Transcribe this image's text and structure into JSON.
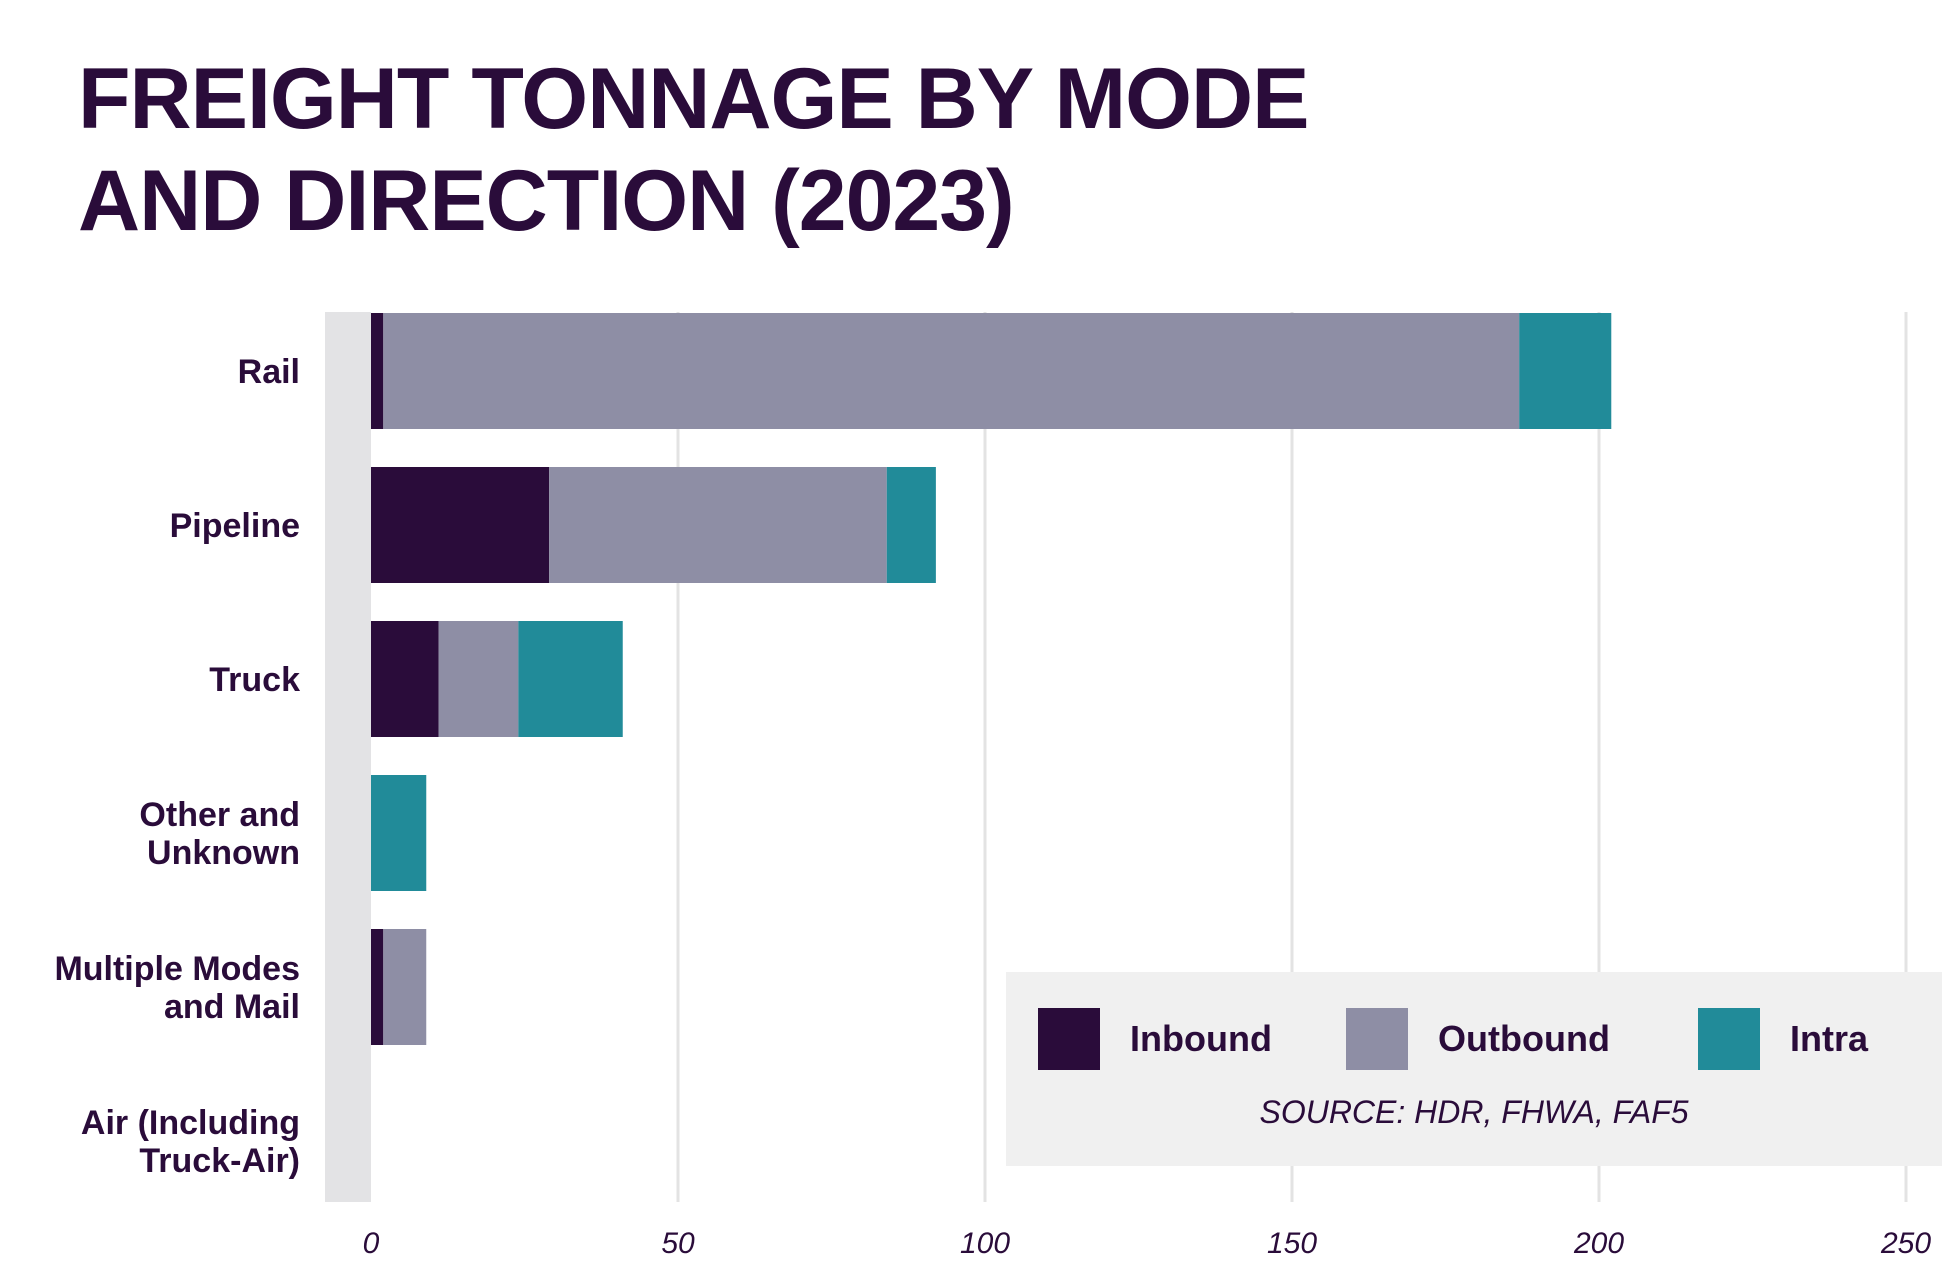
{
  "title_lines": [
    "FREIGHT TONNAGE BY MODE",
    "AND DIRECTION (2023)"
  ],
  "source": "SOURCE: HDR, FHWA, FAF5",
  "colors": {
    "Inbound": "#2a0c3a",
    "Outbound": "#8e8ea5",
    "Intra": "#218b99",
    "grid": "#e3e3e3",
    "axis_band": "#e3e3e5",
    "legend_bg": "#f0f0f0"
  },
  "chart_data": {
    "type": "bar",
    "orientation": "horizontal",
    "stacked": true,
    "title": "FREIGHT TONNAGE BY MODE AND DIRECTION (2023)",
    "categories": [
      "Rail",
      "Pipeline",
      "Truck",
      "Other and Unknown",
      "Multiple Modes and Mail",
      "Air (Including Truck-Air)"
    ],
    "category_lines": [
      [
        "Rail"
      ],
      [
        "Pipeline"
      ],
      [
        "Truck"
      ],
      [
        "Other and",
        "Unknown"
      ],
      [
        "Multiple Modes",
        "and Mail"
      ],
      [
        "Air (Including",
        "Truck-Air)"
      ]
    ],
    "series": [
      {
        "name": "Inbound",
        "values": [
          2,
          29,
          11,
          0,
          2,
          0
        ]
      },
      {
        "name": "Outbound",
        "values": [
          185,
          55,
          13,
          0,
          7,
          0
        ]
      },
      {
        "name": "Intra",
        "values": [
          15,
          8,
          17,
          9,
          0,
          0
        ]
      }
    ],
    "xlim": [
      0,
      250
    ],
    "xticks": [
      0,
      50,
      100,
      150,
      200,
      250
    ],
    "xlabel": "",
    "ylabel": "",
    "grid": "vertical",
    "legend": {
      "position": "bottom-right",
      "entries": [
        "Inbound",
        "Outbound",
        "Intra"
      ]
    }
  }
}
